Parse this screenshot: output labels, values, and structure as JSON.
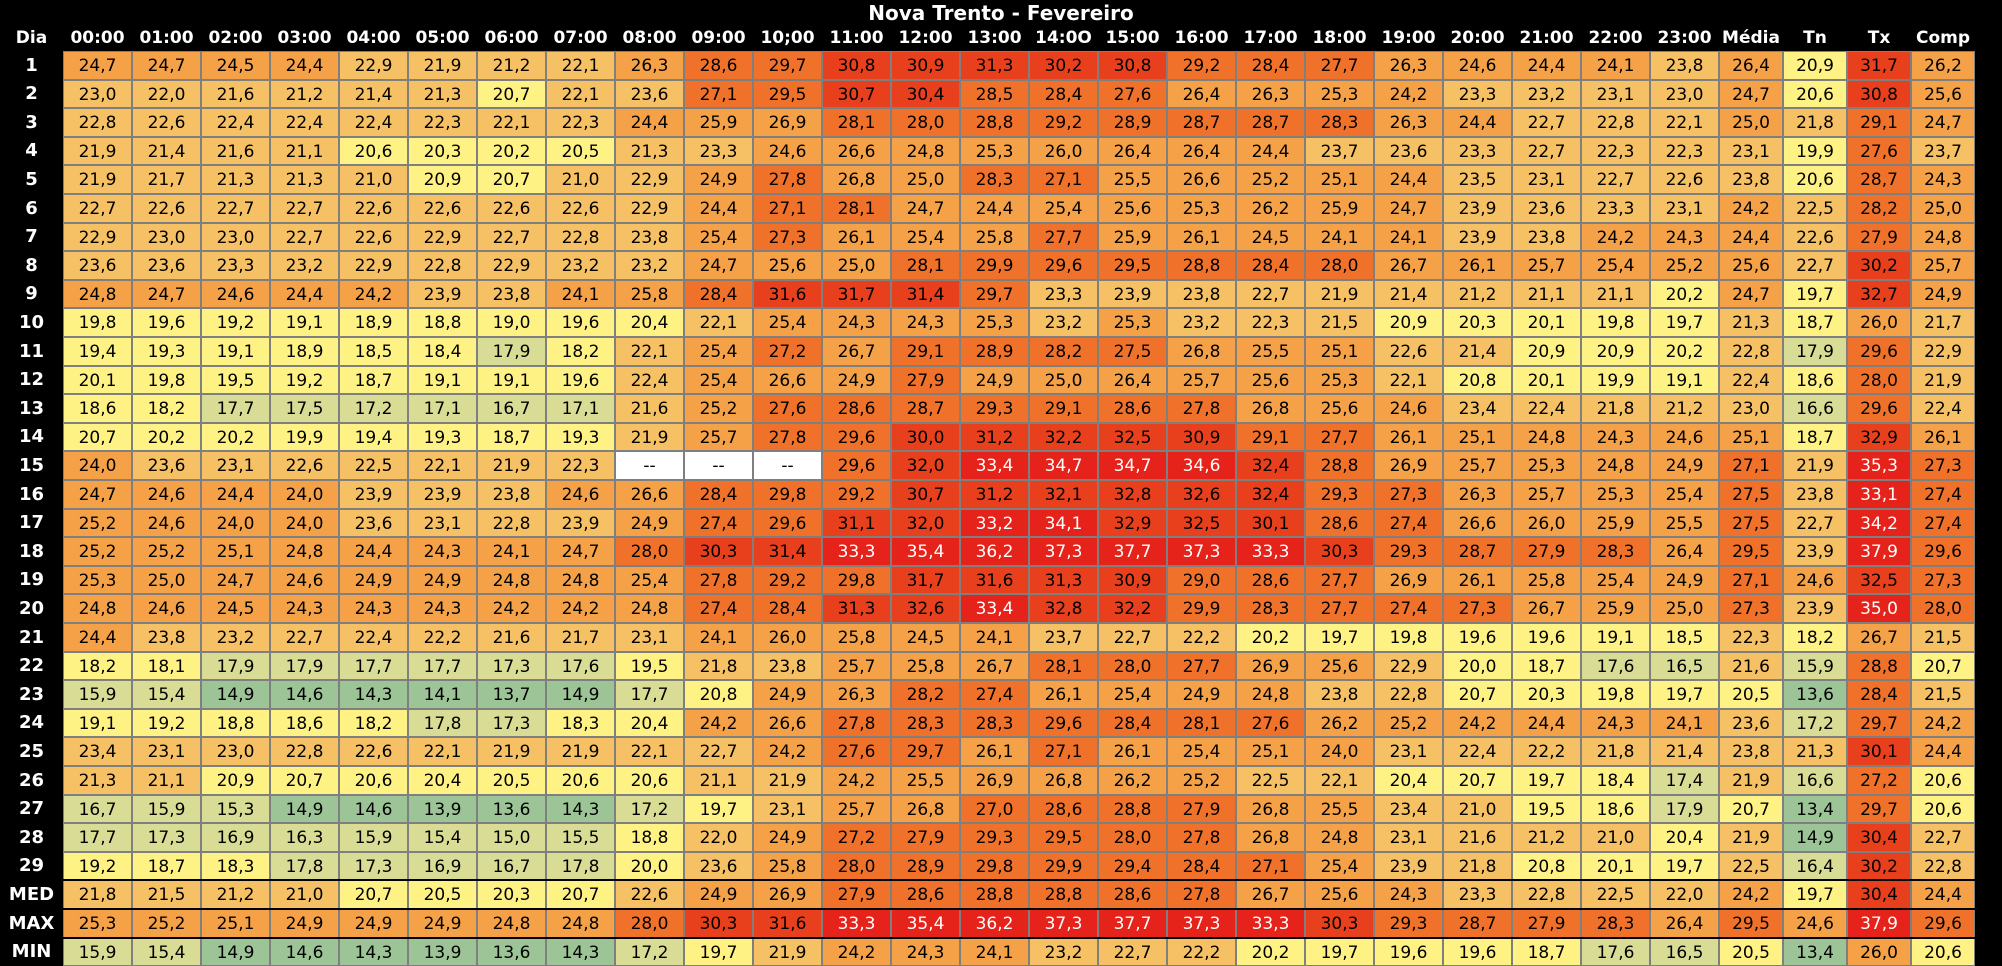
{
  "title": "Nova Trento - Fevereiro",
  "colors": {
    "scale": [
      "#9dc497",
      "#d9dc94",
      "#fff285",
      "#f6c064",
      "#f4a147",
      "#f0722a",
      "#e8401d",
      "#e6231a",
      "#ffffff"
    ],
    "scale_breaks": [
      15,
      18,
      21,
      24,
      27,
      30,
      33,
      36
    ]
  },
  "chart_data": {
    "type": "heatmap",
    "title": "Nova Trento - Fevereiro",
    "corner_label": "Dia",
    "columns": [
      "00:00",
      "01:00",
      "02:00",
      "03:00",
      "04:00",
      "05:00",
      "06:00",
      "07:00",
      "08:00",
      "09:00",
      "10;00",
      "11:00",
      "12:00",
      "13:00",
      "14:0O",
      "15:00",
      "16:00",
      "17:00",
      "18:00",
      "19:00",
      "20:00",
      "21:00",
      "22:00",
      "23:00",
      "Média",
      "Tn",
      "Tx",
      "Comp"
    ],
    "rows": [
      {
        "label": "1",
        "values": [
          "24,7",
          "24,7",
          "24,5",
          "24,4",
          "22,9",
          "21,9",
          "21,2",
          "22,1",
          "26,3",
          "28,6",
          "29,7",
          "30,8",
          "30,9",
          "31,3",
          "30,2",
          "30,8",
          "29,2",
          "28,4",
          "27,7",
          "26,3",
          "24,6",
          "24,4",
          "24,1",
          "23,8",
          "26,4",
          "20,9",
          "31,7",
          "26,2"
        ]
      },
      {
        "label": "2",
        "values": [
          "23,0",
          "22,0",
          "21,6",
          "21,2",
          "21,4",
          "21,3",
          "20,7",
          "22,1",
          "23,6",
          "27,1",
          "29,5",
          "30,7",
          "30,4",
          "28,5",
          "28,4",
          "27,6",
          "26,4",
          "26,3",
          "25,3",
          "24,2",
          "23,3",
          "23,2",
          "23,1",
          "23,0",
          "24,7",
          "20,6",
          "30,8",
          "25,6"
        ]
      },
      {
        "label": "3",
        "values": [
          "22,8",
          "22,6",
          "22,4",
          "22,4",
          "22,4",
          "22,3",
          "22,1",
          "22,3",
          "24,4",
          "25,9",
          "26,9",
          "28,1",
          "28,0",
          "28,8",
          "29,2",
          "28,9",
          "28,7",
          "28,7",
          "28,3",
          "26,3",
          "24,4",
          "22,7",
          "22,8",
          "22,1",
          "25,0",
          "21,8",
          "29,1",
          "24,7"
        ]
      },
      {
        "label": "4",
        "values": [
          "21,9",
          "21,4",
          "21,6",
          "21,1",
          "20,6",
          "20,3",
          "20,2",
          "20,5",
          "21,3",
          "23,3",
          "24,6",
          "26,6",
          "24,8",
          "25,3",
          "26,0",
          "26,4",
          "26,4",
          "24,4",
          "23,7",
          "23,6",
          "23,3",
          "22,7",
          "22,3",
          "22,3",
          "23,1",
          "19,9",
          "27,6",
          "23,7"
        ]
      },
      {
        "label": "5",
        "values": [
          "21,9",
          "21,7",
          "21,3",
          "21,3",
          "21,0",
          "20,9",
          "20,7",
          "21,0",
          "22,9",
          "24,9",
          "27,8",
          "26,8",
          "25,0",
          "28,3",
          "27,1",
          "25,5",
          "26,6",
          "25,2",
          "25,1",
          "24,4",
          "23,5",
          "23,1",
          "22,7",
          "22,6",
          "23,8",
          "20,6",
          "28,7",
          "24,3"
        ]
      },
      {
        "label": "6",
        "values": [
          "22,7",
          "22,6",
          "22,7",
          "22,7",
          "22,6",
          "22,6",
          "22,6",
          "22,6",
          "22,9",
          "24,4",
          "27,1",
          "28,1",
          "24,7",
          "24,4",
          "25,4",
          "25,6",
          "25,3",
          "26,2",
          "25,9",
          "24,7",
          "23,9",
          "23,6",
          "23,3",
          "23,1",
          "24,2",
          "22,5",
          "28,2",
          "25,0"
        ]
      },
      {
        "label": "7",
        "values": [
          "22,9",
          "23,0",
          "23,0",
          "22,7",
          "22,6",
          "22,9",
          "22,7",
          "22,8",
          "23,8",
          "25,4",
          "27,3",
          "26,1",
          "25,4",
          "25,8",
          "27,7",
          "25,9",
          "26,1",
          "24,5",
          "24,1",
          "24,1",
          "23,9",
          "23,8",
          "24,2",
          "24,3",
          "24,4",
          "22,6",
          "27,9",
          "24,8"
        ]
      },
      {
        "label": "8",
        "values": [
          "23,6",
          "23,6",
          "23,3",
          "23,2",
          "22,9",
          "22,8",
          "22,9",
          "23,2",
          "23,2",
          "24,7",
          "25,6",
          "25,0",
          "28,1",
          "29,9",
          "29,6",
          "29,5",
          "28,8",
          "28,4",
          "28,0",
          "26,7",
          "26,1",
          "25,7",
          "25,4",
          "25,2",
          "25,6",
          "22,7",
          "30,2",
          "25,7"
        ]
      },
      {
        "label": "9",
        "values": [
          "24,8",
          "24,7",
          "24,6",
          "24,4",
          "24,2",
          "23,9",
          "23,8",
          "24,1",
          "25,8",
          "28,4",
          "31,6",
          "31,7",
          "31,4",
          "29,7",
          "23,3",
          "23,9",
          "23,8",
          "22,7",
          "21,9",
          "21,4",
          "21,2",
          "21,1",
          "21,1",
          "20,2",
          "24,7",
          "19,7",
          "32,7",
          "24,9"
        ]
      },
      {
        "label": "10",
        "values": [
          "19,8",
          "19,6",
          "19,2",
          "19,1",
          "18,9",
          "18,8",
          "19,0",
          "19,6",
          "20,4",
          "22,1",
          "25,4",
          "24,3",
          "24,3",
          "25,3",
          "23,2",
          "25,3",
          "23,2",
          "22,3",
          "21,5",
          "20,9",
          "20,3",
          "20,1",
          "19,8",
          "19,7",
          "21,3",
          "18,7",
          "26,0",
          "21,7"
        ]
      },
      {
        "label": "11",
        "values": [
          "19,4",
          "19,3",
          "19,1",
          "18,9",
          "18,5",
          "18,4",
          "17,9",
          "18,2",
          "22,1",
          "25,4",
          "27,2",
          "26,7",
          "29,1",
          "28,9",
          "28,2",
          "27,5",
          "26,8",
          "25,5",
          "25,1",
          "22,6",
          "21,4",
          "20,9",
          "20,9",
          "20,2",
          "22,8",
          "17,9",
          "29,6",
          "22,9"
        ]
      },
      {
        "label": "12",
        "values": [
          "20,1",
          "19,8",
          "19,5",
          "19,2",
          "18,7",
          "19,1",
          "19,1",
          "19,6",
          "22,4",
          "25,4",
          "26,6",
          "24,9",
          "27,9",
          "24,9",
          "25,0",
          "26,4",
          "25,7",
          "25,6",
          "25,3",
          "22,1",
          "20,8",
          "20,1",
          "19,9",
          "19,1",
          "22,4",
          "18,6",
          "28,0",
          "21,9"
        ]
      },
      {
        "label": "13",
        "values": [
          "18,6",
          "18,2",
          "17,7",
          "17,5",
          "17,2",
          "17,1",
          "16,7",
          "17,1",
          "21,6",
          "25,2",
          "27,6",
          "28,6",
          "28,7",
          "29,3",
          "29,1",
          "28,6",
          "27,8",
          "26,8",
          "25,6",
          "24,6",
          "23,4",
          "22,4",
          "21,8",
          "21,2",
          "23,0",
          "16,6",
          "29,6",
          "22,4"
        ]
      },
      {
        "label": "14",
        "values": [
          "20,7",
          "20,2",
          "20,2",
          "19,9",
          "19,4",
          "19,3",
          "18,7",
          "19,3",
          "21,9",
          "25,7",
          "27,8",
          "29,6",
          "30,0",
          "31,2",
          "32,2",
          "32,5",
          "30,9",
          "29,1",
          "27,7",
          "26,1",
          "25,1",
          "24,8",
          "24,3",
          "24,6",
          "25,1",
          "18,7",
          "32,9",
          "26,1"
        ]
      },
      {
        "label": "15",
        "values": [
          "24,0",
          "23,6",
          "23,1",
          "22,6",
          "22,5",
          "22,1",
          "21,9",
          "22,3",
          "--",
          "--",
          "--",
          "29,6",
          "32,0",
          "33,4",
          "34,7",
          "34,7",
          "34,6",
          "32,4",
          "28,8",
          "26,9",
          "25,7",
          "25,3",
          "24,8",
          "24,9",
          "27,1",
          "21,9",
          "35,3",
          "27,3"
        ]
      },
      {
        "label": "16",
        "values": [
          "24,7",
          "24,6",
          "24,4",
          "24,0",
          "23,9",
          "23,9",
          "23,8",
          "24,6",
          "26,6",
          "28,4",
          "29,8",
          "29,2",
          "30,7",
          "31,2",
          "32,1",
          "32,8",
          "32,6",
          "32,4",
          "29,3",
          "27,3",
          "26,3",
          "25,7",
          "25,3",
          "25,4",
          "27,5",
          "23,8",
          "33,1",
          "27,4"
        ]
      },
      {
        "label": "17",
        "values": [
          "25,2",
          "24,6",
          "24,0",
          "24,0",
          "23,6",
          "23,1",
          "22,8",
          "23,9",
          "24,9",
          "27,4",
          "29,6",
          "31,1",
          "32,0",
          "33,2",
          "34,1",
          "32,9",
          "32,5",
          "30,1",
          "28,6",
          "27,4",
          "26,6",
          "26,0",
          "25,9",
          "25,5",
          "27,5",
          "22,7",
          "34,2",
          "27,4"
        ]
      },
      {
        "label": "18",
        "values": [
          "25,2",
          "25,2",
          "25,1",
          "24,8",
          "24,4",
          "24,3",
          "24,1",
          "24,7",
          "28,0",
          "30,3",
          "31,4",
          "33,3",
          "35,4",
          "36,2",
          "37,3",
          "37,7",
          "37,3",
          "33,3",
          "30,3",
          "29,3",
          "28,7",
          "27,9",
          "28,3",
          "26,4",
          "29,5",
          "23,9",
          "37,9",
          "29,6"
        ]
      },
      {
        "label": "19",
        "values": [
          "25,3",
          "25,0",
          "24,7",
          "24,6",
          "24,9",
          "24,9",
          "24,8",
          "24,8",
          "25,4",
          "27,8",
          "29,2",
          "29,8",
          "31,7",
          "31,6",
          "31,3",
          "30,9",
          "29,0",
          "28,6",
          "27,7",
          "26,9",
          "26,1",
          "25,8",
          "25,4",
          "24,9",
          "27,1",
          "24,6",
          "32,5",
          "27,3"
        ]
      },
      {
        "label": "20",
        "values": [
          "24,8",
          "24,6",
          "24,5",
          "24,3",
          "24,3",
          "24,3",
          "24,2",
          "24,2",
          "24,8",
          "27,4",
          "28,4",
          "31,3",
          "32,6",
          "33,4",
          "32,8",
          "32,2",
          "29,9",
          "28,3",
          "27,7",
          "27,4",
          "27,3",
          "26,7",
          "25,9",
          "25,0",
          "27,3",
          "23,9",
          "35,0",
          "28,0"
        ]
      },
      {
        "label": "21",
        "values": [
          "24,4",
          "23,8",
          "23,2",
          "22,7",
          "22,4",
          "22,2",
          "21,6",
          "21,7",
          "23,1",
          "24,1",
          "26,0",
          "25,8",
          "24,5",
          "24,1",
          "23,7",
          "22,7",
          "22,2",
          "20,2",
          "19,7",
          "19,8",
          "19,6",
          "19,6",
          "19,1",
          "18,5",
          "22,3",
          "18,2",
          "26,7",
          "21,5"
        ]
      },
      {
        "label": "22",
        "values": [
          "18,2",
          "18,1",
          "17,9",
          "17,9",
          "17,7",
          "17,7",
          "17,3",
          "17,6",
          "19,5",
          "21,8",
          "23,8",
          "25,7",
          "25,8",
          "26,7",
          "28,1",
          "28,0",
          "27,7",
          "26,9",
          "25,6",
          "22,9",
          "20,0",
          "18,7",
          "17,6",
          "16,5",
          "21,6",
          "15,9",
          "28,8",
          "20,7"
        ]
      },
      {
        "label": "23",
        "values": [
          "15,9",
          "15,4",
          "14,9",
          "14,6",
          "14,3",
          "14,1",
          "13,7",
          "14,9",
          "17,7",
          "20,8",
          "24,9",
          "26,3",
          "28,2",
          "27,4",
          "26,1",
          "25,4",
          "24,9",
          "24,8",
          "23,8",
          "22,8",
          "20,7",
          "20,3",
          "19,8",
          "19,7",
          "20,5",
          "13,6",
          "28,4",
          "21,5"
        ]
      },
      {
        "label": "24",
        "values": [
          "19,1",
          "19,2",
          "18,8",
          "18,6",
          "18,2",
          "17,8",
          "17,3",
          "18,3",
          "20,4",
          "24,2",
          "26,6",
          "27,8",
          "28,3",
          "28,3",
          "29,6",
          "28,4",
          "28,1",
          "27,6",
          "26,2",
          "25,2",
          "24,2",
          "24,4",
          "24,3",
          "24,1",
          "23,6",
          "17,2",
          "29,7",
          "24,2"
        ]
      },
      {
        "label": "25",
        "values": [
          "23,4",
          "23,1",
          "23,0",
          "22,8",
          "22,6",
          "22,1",
          "21,9",
          "21,9",
          "22,1",
          "22,7",
          "24,2",
          "27,6",
          "29,7",
          "26,1",
          "27,1",
          "26,1",
          "25,4",
          "25,1",
          "24,0",
          "23,1",
          "22,4",
          "22,2",
          "21,8",
          "21,4",
          "23,8",
          "21,3",
          "30,1",
          "24,4"
        ]
      },
      {
        "label": "26",
        "values": [
          "21,3",
          "21,1",
          "20,9",
          "20,7",
          "20,6",
          "20,4",
          "20,5",
          "20,6",
          "20,6",
          "21,1",
          "21,9",
          "24,2",
          "25,5",
          "26,9",
          "26,8",
          "26,2",
          "25,2",
          "22,5",
          "22,1",
          "20,4",
          "20,7",
          "19,7",
          "18,4",
          "17,4",
          "21,9",
          "16,6",
          "27,2",
          "20,6"
        ]
      },
      {
        "label": "27",
        "values": [
          "16,7",
          "15,9",
          "15,3",
          "14,9",
          "14,6",
          "13,9",
          "13,6",
          "14,3",
          "17,2",
          "19,7",
          "23,1",
          "25,7",
          "26,8",
          "27,0",
          "28,6",
          "28,8",
          "27,9",
          "26,8",
          "25,5",
          "23,4",
          "21,0",
          "19,5",
          "18,6",
          "17,9",
          "20,7",
          "13,4",
          "29,7",
          "20,6"
        ]
      },
      {
        "label": "28",
        "values": [
          "17,7",
          "17,3",
          "16,9",
          "16,3",
          "15,9",
          "15,4",
          "15,0",
          "15,5",
          "18,8",
          "22,0",
          "24,9",
          "27,2",
          "27,9",
          "29,3",
          "29,5",
          "28,0",
          "27,8",
          "26,8",
          "24,8",
          "23,1",
          "21,6",
          "21,2",
          "21,0",
          "20,4",
          "21,9",
          "14,9",
          "30,4",
          "22,7"
        ]
      },
      {
        "label": "29",
        "values": [
          "19,2",
          "18,7",
          "18,3",
          "17,8",
          "17,3",
          "16,9",
          "16,7",
          "17,8",
          "20,0",
          "23,6",
          "25,8",
          "28,0",
          "28,9",
          "29,8",
          "29,9",
          "29,4",
          "28,4",
          "27,1",
          "25,4",
          "23,9",
          "21,8",
          "20,8",
          "20,1",
          "19,7",
          "22,5",
          "16,4",
          "30,2",
          "22,8"
        ]
      }
    ],
    "summary_rows": [
      {
        "label": "MED",
        "values": [
          "21,8",
          "21,5",
          "21,2",
          "21,0",
          "20,7",
          "20,5",
          "20,3",
          "20,7",
          "22,6",
          "24,9",
          "26,9",
          "27,9",
          "28,6",
          "28,8",
          "28,8",
          "28,6",
          "27,8",
          "26,7",
          "25,6",
          "24,3",
          "23,3",
          "22,8",
          "22,5",
          "22,0",
          "24,2",
          "19,7",
          "30,4",
          "24,4"
        ]
      },
      {
        "label": "MAX",
        "values": [
          "25,3",
          "25,2",
          "25,1",
          "24,9",
          "24,9",
          "24,9",
          "24,8",
          "24,8",
          "28,0",
          "30,3",
          "31,6",
          "33,3",
          "35,4",
          "36,2",
          "37,3",
          "37,7",
          "37,3",
          "33,3",
          "30,3",
          "29,3",
          "28,7",
          "27,9",
          "28,3",
          "26,4",
          "29,5",
          "24,6",
          "37,9",
          "29,6"
        ]
      },
      {
        "label": "MIN",
        "values": [
          "15,9",
          "15,4",
          "14,9",
          "14,6",
          "14,3",
          "13,9",
          "13,6",
          "14,3",
          "17,2",
          "19,7",
          "21,9",
          "24,2",
          "24,3",
          "24,1",
          "23,2",
          "22,7",
          "22,2",
          "20,2",
          "19,7",
          "19,6",
          "19,6",
          "18,7",
          "17,6",
          "16,5",
          "20,5",
          "13,4",
          "26,0",
          "20,6"
        ]
      }
    ]
  }
}
